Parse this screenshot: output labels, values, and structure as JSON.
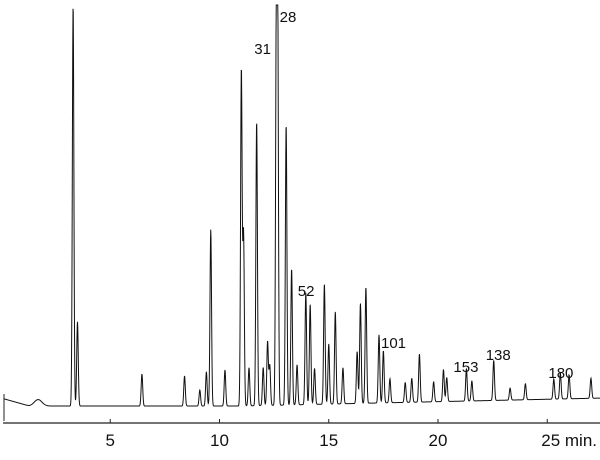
{
  "chart_data": {
    "type": "line",
    "title": "",
    "xlabel": "",
    "ylabel": "",
    "x_unit": "min.",
    "xlim": [
      0,
      27.4
    ],
    "ylim": [
      0,
      100
    ],
    "grid": false,
    "x_ticks": [
      {
        "value": 5,
        "label": "5"
      },
      {
        "value": 10,
        "label": "10"
      },
      {
        "value": 15,
        "label": "15"
      },
      {
        "value": 20,
        "label": "20"
      },
      {
        "value": 25,
        "label": "25 min."
      }
    ],
    "peaks": [
      {
        "t": 3.3,
        "h": 100
      },
      {
        "t": 3.5,
        "h": 21
      },
      {
        "t": 6.45,
        "h": 8
      },
      {
        "t": 8.4,
        "h": 7.5
      },
      {
        "t": 9.1,
        "h": 4
      },
      {
        "t": 9.4,
        "h": 8.5
      },
      {
        "t": 9.6,
        "h": 44
      },
      {
        "t": 10.25,
        "h": 9
      },
      {
        "t": 11.0,
        "h": 84
      },
      {
        "t": 11.1,
        "h": 43
      },
      {
        "t": 11.35,
        "h": 9.5
      },
      {
        "t": 11.7,
        "h": 71
      },
      {
        "t": 12.0,
        "h": 9.5
      },
      {
        "t": 12.2,
        "h": 16
      },
      {
        "t": 12.3,
        "h": 10
      },
      {
        "t": 12.6,
        "h": 88
      },
      {
        "t": 12.66,
        "h": 99
      },
      {
        "t": 13.05,
        "h": 70
      },
      {
        "t": 13.3,
        "h": 34
      },
      {
        "t": 13.55,
        "h": 10
      },
      {
        "t": 13.95,
        "h": 28
      },
      {
        "t": 14.15,
        "h": 25
      },
      {
        "t": 14.35,
        "h": 9
      },
      {
        "t": 14.8,
        "h": 30
      },
      {
        "t": 15.0,
        "h": 15
      },
      {
        "t": 15.3,
        "h": 23
      },
      {
        "t": 15.65,
        "h": 9
      },
      {
        "t": 16.3,
        "h": 13
      },
      {
        "t": 16.45,
        "h": 25
      },
      {
        "t": 16.7,
        "h": 29
      },
      {
        "t": 17.3,
        "h": 17
      },
      {
        "t": 17.5,
        "h": 13
      },
      {
        "t": 17.8,
        "h": 6
      },
      {
        "t": 18.5,
        "h": 5
      },
      {
        "t": 18.8,
        "h": 6
      },
      {
        "t": 19.15,
        "h": 12
      },
      {
        "t": 19.8,
        "h": 5
      },
      {
        "t": 20.25,
        "h": 8
      },
      {
        "t": 20.4,
        "h": 6
      },
      {
        "t": 21.3,
        "h": 8
      },
      {
        "t": 21.55,
        "h": 5
      },
      {
        "t": 22.55,
        "h": 10
      },
      {
        "t": 23.3,
        "h": 3
      },
      {
        "t": 24.0,
        "h": 4
      },
      {
        "t": 25.3,
        "h": 5
      },
      {
        "t": 25.6,
        "h": 6.5
      },
      {
        "t": 26.0,
        "h": 6
      },
      {
        "t": 27.0,
        "h": 5
      }
    ],
    "annotations": [
      {
        "label": "28",
        "t": 12.66
      },
      {
        "label": "31",
        "t": 12.6
      },
      {
        "label": "52",
        "t": 13.95
      },
      {
        "label": "101",
        "t": 17.3
      },
      {
        "label": "153",
        "t": 21.3
      },
      {
        "label": "138",
        "t": 22.55
      },
      {
        "label": "180",
        "t": 25.6
      }
    ]
  }
}
